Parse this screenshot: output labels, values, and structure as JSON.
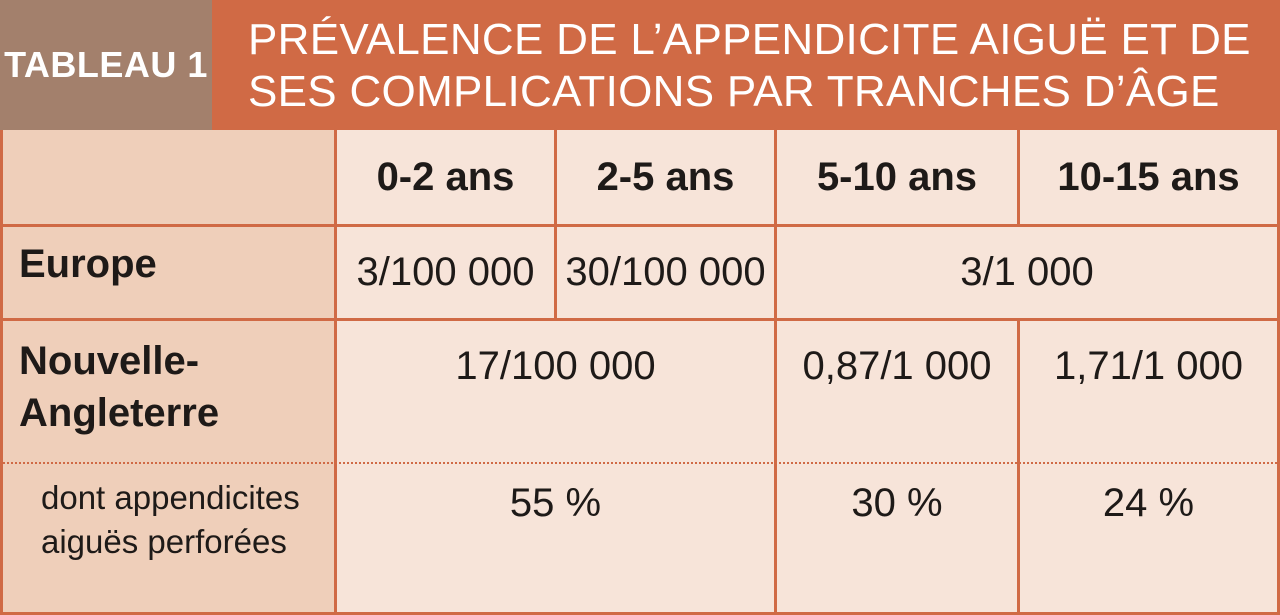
{
  "header": {
    "badge": "TABLEAU 1",
    "title_line1": "PRÉVALENCE DE L’APPENDICITE AIGUË ET DE",
    "title_line2": "SES COMPLICATIONS PAR TRANCHES D’ÂGE"
  },
  "colors": {
    "accent": "#d06a45",
    "badge_bg": "#a3806c",
    "table_bg": "#f7e4d9",
    "stub_bg": "#efcfba"
  },
  "table": {
    "columns": [
      "0-2 ans",
      "2-5 ans",
      "5-10 ans",
      "10-15 ans"
    ],
    "rows": {
      "europe": {
        "label": "Europe",
        "values": [
          "3/100 000",
          "30/100 000",
          "3/1 000"
        ]
      },
      "nouvelle_angleterre": {
        "label_line1": "Nouvelle-",
        "label_line2": "Angleterre",
        "values": [
          "17/100 000",
          "0,87/1 000",
          "1,71/1 000"
        ]
      },
      "perforees": {
        "label_line1": "dont appendicites",
        "label_line2": "aiguës perforées",
        "values": [
          "55 %",
          "30 %",
          "24 %"
        ]
      }
    }
  }
}
